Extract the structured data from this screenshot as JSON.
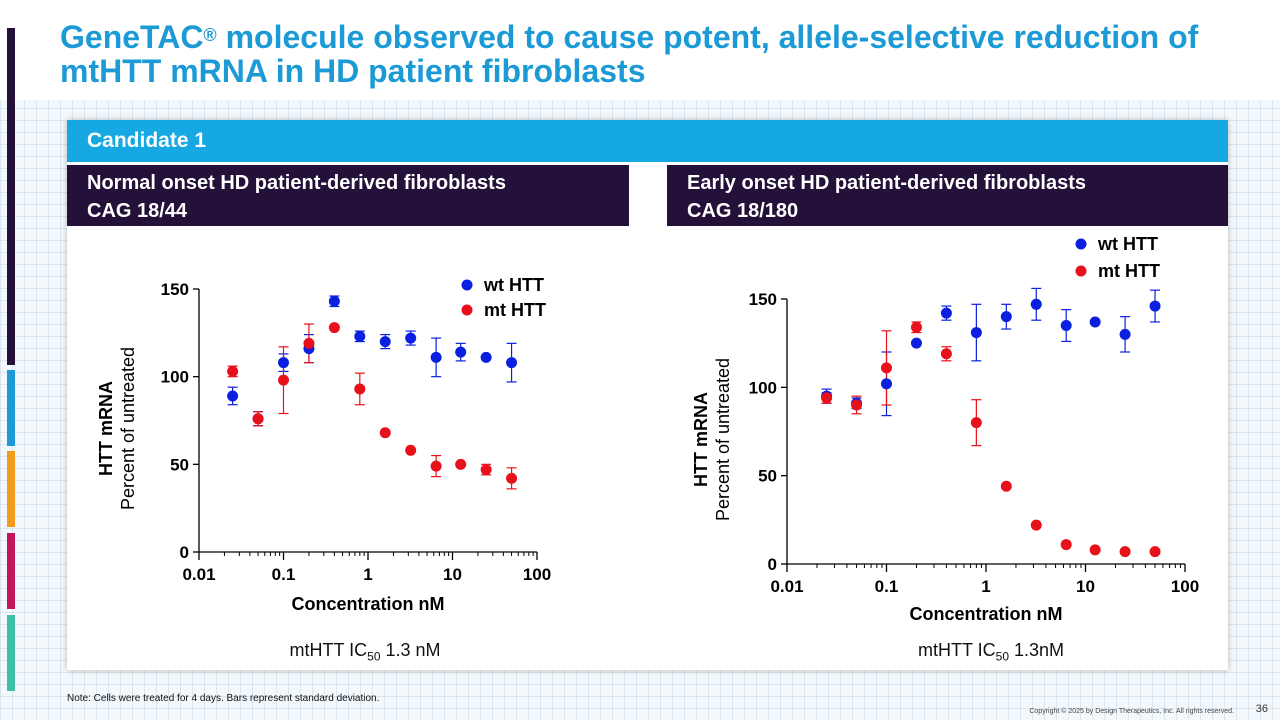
{
  "slide": {
    "title_main": "GeneTAC",
    "title_sup": "®",
    "title_rest": " molecule observed to cause potent, allele-selective reduction of mtHTT mRNA in HD patient fibroblasts",
    "candidate_label": "Candidate 1",
    "note": "Note: Cells were treated for 4 days. Bars represent standard deviation.",
    "copyright": "Copyright © 2025 by Design Therapeutics, Inc. All rights reserved.",
    "page_number": "36",
    "accent_colors": [
      "#231139",
      "#1b9ad6",
      "#f39c1f",
      "#c2185b",
      "#3cc0a8"
    ]
  },
  "panels": [
    {
      "heading_line1": "Normal onset HD patient-derived fibroblasts",
      "heading_line2": "CAG 18/44",
      "ic50_prefix": "mtHTT IC",
      "ic50_sub": "50",
      "ic50_value": " 1.3 nM"
    },
    {
      "heading_line1": "Early onset HD patient-derived fibroblasts",
      "heading_line2": "CAG 18/180",
      "ic50_prefix": "mtHTT IC",
      "ic50_sub": "50",
      "ic50_value": " 1.3nM"
    }
  ],
  "chart_data": [
    {
      "type": "scatter",
      "title": "Normal onset HD patient-derived fibroblasts CAG 18/44",
      "xlabel": "Concentration nM",
      "ylabel": "HTT mRNA",
      "ylabel2": "Percent of untreated",
      "xscale": "log",
      "xlim": [
        0.01,
        100
      ],
      "ylim": [
        0,
        150
      ],
      "xticks": [
        0.01,
        0.1,
        1,
        10,
        100
      ],
      "xtick_labels": [
        "0.01",
        "0.1",
        "1",
        "10",
        "100"
      ],
      "yticks": [
        0,
        50,
        100,
        150
      ],
      "ytick_labels": [
        "0",
        "50",
        "100",
        "150"
      ],
      "legend_position": "top-right",
      "series": [
        {
          "name": "wt HTT",
          "color": "#0a1fe0",
          "x": [
            0.025,
            0.05,
            0.1,
            0.2,
            0.4,
            0.8,
            1.6,
            3.2,
            6.4,
            12.5,
            25,
            50
          ],
          "y": [
            89,
            76,
            108,
            116,
            143,
            123,
            120,
            122,
            111,
            114,
            111,
            108
          ],
          "err": [
            5,
            4,
            5,
            8,
            3,
            3,
            4,
            4,
            11,
            5,
            0,
            11
          ]
        },
        {
          "name": "mt HTT",
          "color": "#e8101a",
          "x": [
            0.025,
            0.05,
            0.1,
            0.2,
            0.4,
            0.8,
            1.6,
            3.2,
            6.4,
            12.5,
            25,
            50
          ],
          "y": [
            103,
            76,
            98,
            119,
            128,
            93,
            68,
            58,
            49,
            50,
            47,
            42
          ],
          "err": [
            3,
            4,
            19,
            11,
            0,
            9,
            0,
            0,
            6,
            0,
            3,
            6
          ]
        }
      ]
    },
    {
      "type": "scatter",
      "title": "Early onset HD patient-derived fibroblasts CAG 18/180",
      "xlabel": "Concentration nM",
      "ylabel": "HTT mRNA",
      "ylabel2": "Percent of untreated",
      "xscale": "log",
      "xlim": [
        0.01,
        100
      ],
      "ylim": [
        0,
        150
      ],
      "xticks": [
        0.01,
        0.1,
        1,
        10,
        100
      ],
      "xtick_labels": [
        "0.01",
        "0.1",
        "1",
        "10",
        "100"
      ],
      "yticks": [
        0,
        50,
        100,
        150
      ],
      "ytick_labels": [
        "0",
        "50",
        "100",
        "150"
      ],
      "legend_position": "top-right",
      "series": [
        {
          "name": "wt HTT",
          "color": "#0a1fe0",
          "x": [
            0.025,
            0.05,
            0.1,
            0.2,
            0.4,
            0.8,
            1.6,
            3.2,
            6.4,
            12.5,
            25,
            50
          ],
          "y": [
            95,
            91,
            102,
            125,
            142,
            131,
            140,
            147,
            135,
            137,
            130,
            146
          ],
          "err": [
            4,
            3,
            18,
            0,
            4,
            16,
            7,
            9,
            9,
            0,
            10,
            9
          ]
        },
        {
          "name": "mt HTT",
          "color": "#e8101a",
          "x": [
            0.025,
            0.05,
            0.1,
            0.2,
            0.4,
            0.8,
            1.6,
            3.2,
            6.4,
            12.5,
            25,
            50
          ],
          "y": [
            94,
            90,
            111,
            134,
            119,
            80,
            44,
            22,
            11,
            8,
            7,
            7
          ],
          "err": [
            3,
            5,
            21,
            3,
            4,
            13,
            0,
            0,
            0,
            0,
            0,
            0
          ]
        }
      ]
    }
  ]
}
